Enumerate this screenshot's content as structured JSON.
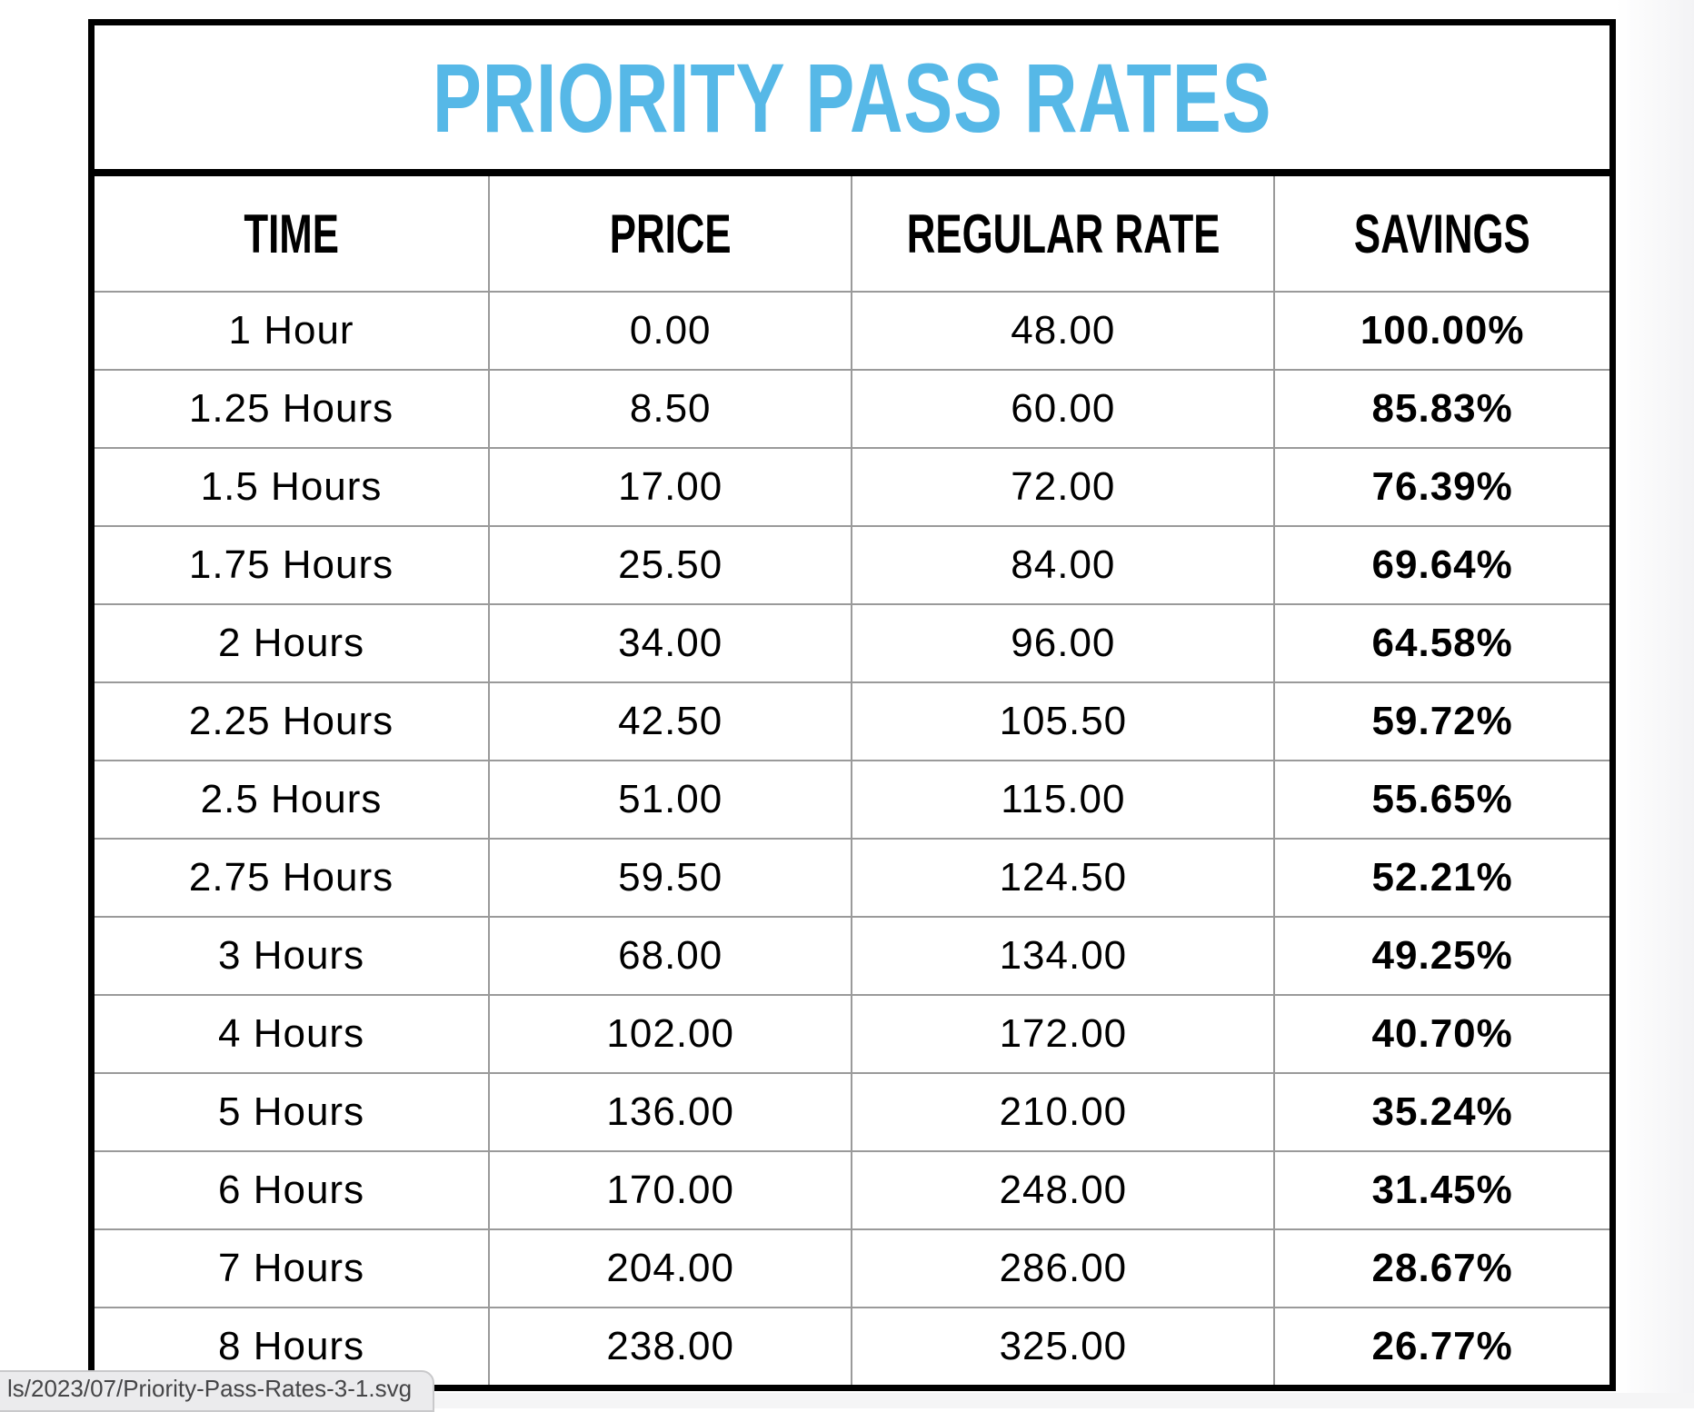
{
  "title": "PRIORITY PASS RATES",
  "columns": [
    "TIME",
    "PRICE",
    "REGULAR RATE",
    "SAVINGS"
  ],
  "rows": [
    {
      "time": "1 Hour",
      "price": "0.00",
      "regular_rate": "48.00",
      "savings": "100.00%"
    },
    {
      "time": "1.25 Hours",
      "price": "8.50",
      "regular_rate": "60.00",
      "savings": "85.83%"
    },
    {
      "time": "1.5 Hours",
      "price": "17.00",
      "regular_rate": "72.00",
      "savings": "76.39%"
    },
    {
      "time": "1.75 Hours",
      "price": "25.50",
      "regular_rate": "84.00",
      "savings": "69.64%"
    },
    {
      "time": "2 Hours",
      "price": "34.00",
      "regular_rate": "96.00",
      "savings": "64.58%"
    },
    {
      "time": "2.25 Hours",
      "price": "42.50",
      "regular_rate": "105.50",
      "savings": "59.72%"
    },
    {
      "time": "2.5 Hours",
      "price": "51.00",
      "regular_rate": "115.00",
      "savings": "55.65%"
    },
    {
      "time": "2.75 Hours",
      "price": "59.50",
      "regular_rate": "124.50",
      "savings": "52.21%"
    },
    {
      "time": "3 Hours",
      "price": "68.00",
      "regular_rate": "134.00",
      "savings": "49.25%"
    },
    {
      "time": "4 Hours",
      "price": "102.00",
      "regular_rate": "172.00",
      "savings": "40.70%"
    },
    {
      "time": "5 Hours",
      "price": "136.00",
      "regular_rate": "210.00",
      "savings": "35.24%"
    },
    {
      "time": "6 Hours",
      "price": "170.00",
      "regular_rate": "248.00",
      "savings": "31.45%"
    },
    {
      "time": "7 Hours",
      "price": "204.00",
      "regular_rate": "286.00",
      "savings": "28.67%"
    },
    {
      "time": "8 Hours",
      "price": "238.00",
      "regular_rate": "325.00",
      "savings": "26.77%"
    }
  ],
  "status_bar": {
    "url_text": "ls/2023/07/Priority-Pass-Rates-3-1.svg"
  },
  "colors": {
    "title_blue": "#56b8e7",
    "grid_line": "#9a9a9a",
    "border_black": "#000000",
    "status_bg": "#ebebed",
    "status_text": "#454547"
  }
}
